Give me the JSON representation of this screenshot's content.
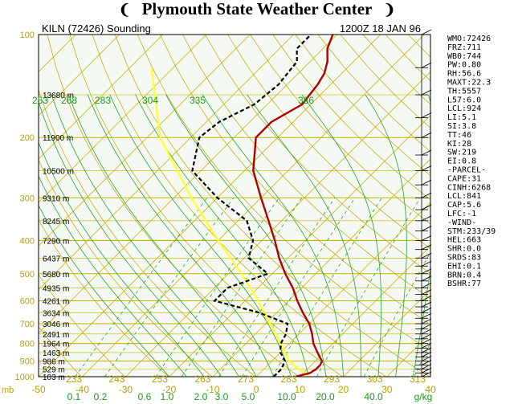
{
  "header": {
    "title": "Plymouth State Weather Center",
    "left_flag": "❨",
    "right_flag": "❩"
  },
  "sounding": {
    "station": "KILN (72426) Sounding",
    "time": "1200Z 18 JAN 96"
  },
  "stats": [
    "WMO:72426",
    "FRZ:711",
    "WB0:744",
    "PW:0.80",
    "RH:56.6",
    "MAXT:22.3",
    "TH:5557",
    "L57:6.0",
    "LCL:924",
    "LI:5.1",
    "SI:3.8",
    "TT:46",
    "KI:28",
    "SW:219",
    "EI:0.8",
    "-PARCEL-",
    "CAPE:31",
    "CINH:6268",
    "LCL:841",
    "CAP:5.6",
    "LFC:-1",
    "-WIND-",
    "STM:233/39",
    "HEL:663",
    "SHR:0.0",
    "SRDS:83",
    "EHI:0.1",
    "BRN:0.4",
    "BSHR:77"
  ],
  "colors": {
    "background": "#f4f9f4",
    "isobar": "#c8b400",
    "isotherm": "#c8b400",
    "dry_adiabat": "#b8a800",
    "moist_adiabat": "#2ea02e",
    "mixing_ratio": "#2ea02e",
    "temperature": "#b00000",
    "dewpoint": "#000000",
    "parcel": "#ffff33",
    "axis_text_yellow": "#b8a000",
    "axis_text_green": "#1a9a1a"
  },
  "chart_data": {
    "type": "skew-t",
    "pressure_levels": [
      100,
      200,
      300,
      400,
      500,
      600,
      700,
      800,
      900,
      1000
    ],
    "pressure_label_prefix": "mb",
    "height_labels": [
      {
        "p": 150,
        "text": "13680 m"
      },
      {
        "p": 200,
        "text": "11900 m"
      },
      {
        "p": 250,
        "text": "10500 m"
      },
      {
        "p": 300,
        "text": "9310 m"
      },
      {
        "p": 350,
        "text": "8245 m"
      },
      {
        "p": 400,
        "text": "7290 m"
      },
      {
        "p": 450,
        "text": "6437 m"
      },
      {
        "p": 500,
        "text": "5680 m"
      },
      {
        "p": 550,
        "text": "4935 m"
      },
      {
        "p": 600,
        "text": "4261 m"
      },
      {
        "p": 650,
        "text": "3634 m"
      },
      {
        "p": 700,
        "text": "3046 m"
      },
      {
        "p": 750,
        "text": "2491 m"
      },
      {
        "p": 800,
        "text": "1964 m"
      },
      {
        "p": 850,
        "text": "1463 m"
      },
      {
        "p": 900,
        "text": "986 m"
      },
      {
        "p": 950,
        "text": "529 m"
      },
      {
        "p": 1000,
        "text": "103 m"
      }
    ],
    "temperature_ticks": [
      {
        "t": -50,
        "text": "-50"
      },
      {
        "t": -40,
        "text": "-40"
      },
      {
        "t": -30,
        "text": "-30"
      },
      {
        "t": -20,
        "text": "-20"
      },
      {
        "t": -10,
        "text": "-10"
      },
      {
        "t": 0,
        "text": "0"
      },
      {
        "t": 10,
        "text": "10"
      },
      {
        "t": 20,
        "text": "20"
      },
      {
        "t": 30,
        "text": "30"
      },
      {
        "t": 40,
        "text": "40"
      }
    ],
    "theta_labels_bottom": [
      "233",
      "243",
      "253",
      "263",
      "273",
      "283",
      "293",
      "303",
      "313"
    ],
    "theta_labels_top": [
      "253",
      "268",
      "283",
      "304",
      "335",
      "386"
    ],
    "mixing_ratio_labels": [
      "0.1",
      "0.2",
      "0.6",
      "1.0",
      "2.0",
      "3.0",
      "5.0",
      "10.0",
      "20.0",
      "40.0"
    ],
    "mixing_ratio_unit": "g/kg",
    "temperature_profile": [
      {
        "p": 1000,
        "t": 9
      },
      {
        "p": 975,
        "t": 11.5
      },
      {
        "p": 950,
        "t": 12
      },
      {
        "p": 925,
        "t": 12
      },
      {
        "p": 900,
        "t": 11.5
      },
      {
        "p": 875,
        "t": 10
      },
      {
        "p": 850,
        "t": 8.5
      },
      {
        "p": 800,
        "t": 5.5
      },
      {
        "p": 750,
        "t": 3
      },
      {
        "p": 700,
        "t": 0
      },
      {
        "p": 650,
        "t": -4
      },
      {
        "p": 600,
        "t": -8
      },
      {
        "p": 550,
        "t": -12
      },
      {
        "p": 500,
        "t": -17
      },
      {
        "p": 450,
        "t": -22
      },
      {
        "p": 400,
        "t": -27
      },
      {
        "p": 350,
        "t": -33
      },
      {
        "p": 300,
        "t": -40
      },
      {
        "p": 250,
        "t": -48
      },
      {
        "p": 200,
        "t": -55
      },
      {
        "p": 180,
        "t": -55
      },
      {
        "p": 160,
        "t": -52
      },
      {
        "p": 140,
        "t": -53
      },
      {
        "p": 130,
        "t": -54
      },
      {
        "p": 120,
        "t": -56
      },
      {
        "p": 110,
        "t": -59
      },
      {
        "p": 100,
        "t": -61
      }
    ],
    "dewpoint_profile": [
      {
        "p": 1000,
        "t": 4
      },
      {
        "p": 950,
        "t": 4
      },
      {
        "p": 900,
        "t": 3
      },
      {
        "p": 850,
        "t": 0
      },
      {
        "p": 800,
        "t": -2
      },
      {
        "p": 750,
        "t": -3
      },
      {
        "p": 700,
        "t": -5
      },
      {
        "p": 650,
        "t": -14
      },
      {
        "p": 600,
        "t": -27
      },
      {
        "p": 550,
        "t": -27
      },
      {
        "p": 500,
        "t": -21
      },
      {
        "p": 450,
        "t": -29
      },
      {
        "p": 400,
        "t": -32
      },
      {
        "p": 350,
        "t": -38
      },
      {
        "p": 300,
        "t": -50
      },
      {
        "p": 250,
        "t": -62
      },
      {
        "p": 200,
        "t": -68
      },
      {
        "p": 180,
        "t": -67
      },
      {
        "p": 160,
        "t": -63
      },
      {
        "p": 140,
        "t": -62
      },
      {
        "p": 120,
        "t": -63
      },
      {
        "p": 110,
        "t": -66
      },
      {
        "p": 100,
        "t": -66
      }
    ],
    "parcel_profile": [
      {
        "p": 1000,
        "t": 12
      },
      {
        "p": 950,
        "t": 8
      },
      {
        "p": 900,
        "t": 4
      },
      {
        "p": 850,
        "t": 1
      },
      {
        "p": 800,
        "t": -2
      },
      {
        "p": 700,
        "t": -9
      },
      {
        "p": 600,
        "t": -17
      },
      {
        "p": 500,
        "t": -27
      },
      {
        "p": 400,
        "t": -40
      },
      {
        "p": 300,
        "t": -56
      },
      {
        "p": 200,
        "t": -77
      },
      {
        "p": 125,
        "t": -95
      }
    ],
    "p_range": [
      100,
      1000
    ],
    "t_range_bottom": [
      -50,
      40
    ],
    "skew": "45 degrees, log-pressure vertical axis"
  }
}
